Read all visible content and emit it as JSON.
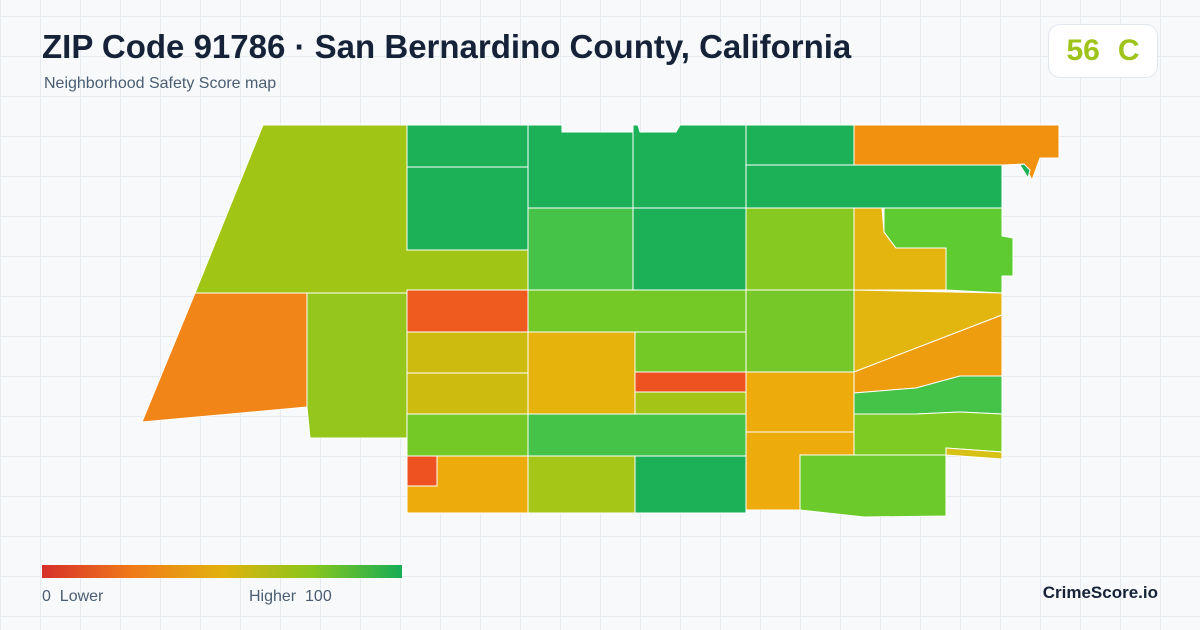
{
  "header": {
    "title": "ZIP Code 91786 · San Bernardino County, California",
    "subtitle": "Neighborhood Safety Score map"
  },
  "score": {
    "value": "56",
    "grade": "C",
    "color": "#9ec31a"
  },
  "legend": {
    "low_label": "0  Lower",
    "high_label": "Higher  100",
    "colors": [
      "#d62f2a",
      "#f07a1a",
      "#e2b10d",
      "#88c61d",
      "#16ad55"
    ]
  },
  "brand": "CrimeScore.io"
}
